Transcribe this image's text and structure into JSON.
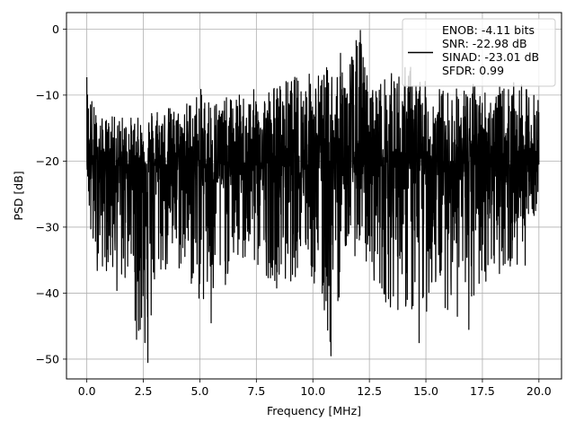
{
  "chart_data": {
    "type": "line",
    "title": "",
    "xlabel": "Frequency [MHz]",
    "ylabel": "PSD [dB]",
    "xlim": [
      -0.9,
      21.0
    ],
    "ylim": [
      -53.0,
      2.5
    ],
    "xticks": [
      0.0,
      2.5,
      5.0,
      7.5,
      10.0,
      12.5,
      15.0,
      17.5,
      20.0
    ],
    "xtick_labels": [
      "0.0",
      "2.5",
      "5.0",
      "7.5",
      "10.0",
      "12.5",
      "15.0",
      "17.5",
      "20.0"
    ],
    "yticks": [
      0,
      -10,
      -20,
      -30,
      -40,
      -50
    ],
    "ytick_labels": [
      "0",
      "−10",
      "−20",
      "−30",
      "−40",
      "−50"
    ],
    "grid": true,
    "legend_position": "top-right",
    "series": [
      {
        "color": "#000000",
        "x_range": [
          0.0,
          20.0
        ],
        "mean_level_db": -20.5,
        "upper_envelope_db": [
          [
            0.0,
            -7.3
          ],
          [
            0.5,
            -13.5
          ],
          [
            1.5,
            -13.0
          ],
          [
            2.5,
            -13.5
          ],
          [
            3.0,
            -11.0
          ],
          [
            4.0,
            -12.0
          ],
          [
            5.0,
            -9.0
          ],
          [
            6.0,
            -10.5
          ],
          [
            7.0,
            -9.5
          ],
          [
            8.0,
            -8.5
          ],
          [
            8.5,
            -8.0
          ],
          [
            9.5,
            -6.5
          ],
          [
            10.5,
            -6.0
          ],
          [
            11.2,
            -3.5
          ],
          [
            11.5,
            -4.0
          ],
          [
            12.1,
            -0.2
          ],
          [
            12.5,
            -8.5
          ],
          [
            13.5,
            -6.5
          ],
          [
            14.3,
            -5.0
          ],
          [
            15.0,
            -8.0
          ],
          [
            16.0,
            -9.0
          ],
          [
            17.0,
            -8.0
          ],
          [
            18.0,
            -9.0
          ],
          [
            19.0,
            -8.0
          ],
          [
            20.0,
            -10.0
          ]
        ],
        "lower_envelope_db": [
          [
            0.0,
            -20.0
          ],
          [
            0.2,
            -36.5
          ],
          [
            1.0,
            -37.0
          ],
          [
            1.3,
            -40.5
          ],
          [
            2.0,
            -38.0
          ],
          [
            2.2,
            -47.0
          ],
          [
            2.7,
            -50.5
          ],
          [
            3.2,
            -38.0
          ],
          [
            4.2,
            -37.5
          ],
          [
            5.5,
            -44.5
          ],
          [
            6.5,
            -36.0
          ],
          [
            7.5,
            -37.0
          ],
          [
            8.2,
            -38.0
          ],
          [
            8.6,
            -40.5
          ],
          [
            9.7,
            -35.5
          ],
          [
            10.8,
            -49.5
          ],
          [
            11.5,
            -33.0
          ],
          [
            12.5,
            -37.0
          ],
          [
            13.3,
            -42.0
          ],
          [
            14.2,
            -43.5
          ],
          [
            14.7,
            -47.5
          ],
          [
            15.3,
            -40.0
          ],
          [
            16.3,
            -44.0
          ],
          [
            16.9,
            -45.5
          ],
          [
            17.5,
            -39.0
          ],
          [
            18.3,
            -37.0
          ],
          [
            19.3,
            -37.5
          ],
          [
            20.0,
            -25.0
          ]
        ],
        "notable_points_db": [
          [
            0.0,
            -7.3
          ],
          [
            2.2,
            -47.0
          ],
          [
            2.7,
            -50.5
          ],
          [
            5.5,
            -44.5
          ],
          [
            10.8,
            -49.5
          ],
          [
            12.1,
            -0.2
          ],
          [
            14.7,
            -47.5
          ],
          [
            16.9,
            -45.5
          ]
        ]
      }
    ],
    "legend": {
      "lines": [
        "ENOB: -4.11 bits",
        "SNR: -22.98 dB",
        "SINAD: -23.01 dB",
        "SFDR: 0.99"
      ],
      "swatch_color": "#000000"
    }
  }
}
